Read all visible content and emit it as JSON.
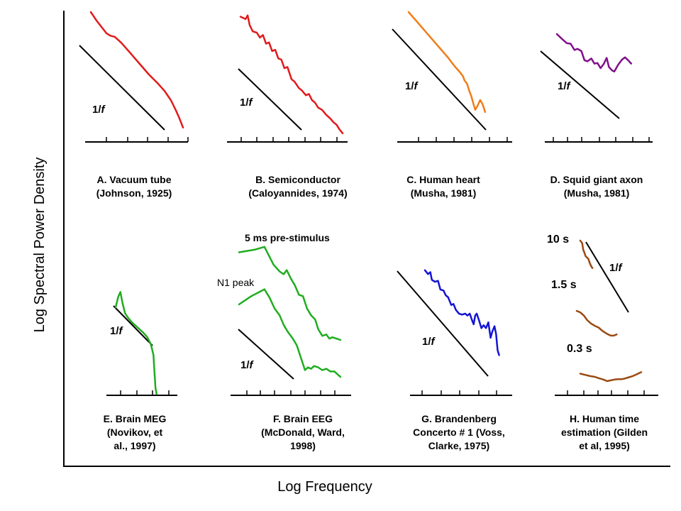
{
  "chart_data": {
    "type": "line",
    "title": "",
    "xlabel": "Log Frequency",
    "ylabel": "Log Spectral Power Density",
    "x_scale": "log",
    "y_scale": "log",
    "reference_label_prefix": "1/",
    "reference_label_var": "f",
    "panels": [
      {
        "id": "A",
        "caption": [
          "A. Vacuum tube",
          "(Johnson, 1925)"
        ],
        "color": "#e01b1b",
        "series": [
          {
            "values": [
              [
                0.0,
                1.0
              ],
              [
                0.06,
                0.93
              ],
              [
                0.12,
                0.87
              ],
              [
                0.17,
                0.82
              ],
              [
                0.21,
                0.8
              ],
              [
                0.26,
                0.79
              ],
              [
                0.33,
                0.74
              ],
              [
                0.42,
                0.66
              ],
              [
                0.53,
                0.56
              ],
              [
                0.63,
                0.47
              ],
              [
                0.72,
                0.4
              ],
              [
                0.8,
                0.33
              ],
              [
                0.87,
                0.25
              ],
              [
                0.92,
                0.17
              ],
              [
                0.96,
                0.1
              ],
              [
                1.0,
                0.02
              ]
            ]
          }
        ]
      },
      {
        "id": "B",
        "caption": [
          "B. Semiconductor",
          "(Caloyannides, 1974)"
        ],
        "color": "#e01b1b",
        "series": [
          {
            "values": [
              [
                0.0,
                0.98
              ],
              [
                0.05,
                0.96
              ],
              [
                0.07,
                0.99
              ],
              [
                0.09,
                0.91
              ],
              [
                0.12,
                0.86
              ],
              [
                0.16,
                0.85
              ],
              [
                0.19,
                0.81
              ],
              [
                0.22,
                0.83
              ],
              [
                0.25,
                0.76
              ],
              [
                0.28,
                0.77
              ],
              [
                0.31,
                0.7
              ],
              [
                0.34,
                0.71
              ],
              [
                0.37,
                0.64
              ],
              [
                0.4,
                0.63
              ],
              [
                0.43,
                0.56
              ],
              [
                0.46,
                0.57
              ],
              [
                0.5,
                0.47
              ],
              [
                0.53,
                0.45
              ],
              [
                0.57,
                0.4
              ],
              [
                0.6,
                0.38
              ],
              [
                0.64,
                0.34
              ],
              [
                0.67,
                0.35
              ],
              [
                0.7,
                0.3
              ],
              [
                0.73,
                0.28
              ],
              [
                0.76,
                0.24
              ],
              [
                0.8,
                0.22
              ],
              [
                0.84,
                0.18
              ],
              [
                0.88,
                0.15
              ],
              [
                0.91,
                0.12
              ],
              [
                0.94,
                0.1
              ],
              [
                0.97,
                0.06
              ],
              [
                1.0,
                0.03
              ]
            ]
          }
        ]
      },
      {
        "id": "C",
        "caption": [
          "C. Human heart",
          "(Musha, 1981)"
        ],
        "color": "#f07d17",
        "series": [
          {
            "values": [
              [
                0.0,
                1.0
              ],
              [
                0.08,
                0.93
              ],
              [
                0.16,
                0.86
              ],
              [
                0.24,
                0.79
              ],
              [
                0.32,
                0.72
              ],
              [
                0.4,
                0.65
              ],
              [
                0.48,
                0.58
              ],
              [
                0.56,
                0.5
              ],
              [
                0.62,
                0.45
              ],
              [
                0.66,
                0.41
              ],
              [
                0.68,
                0.37
              ],
              [
                0.71,
                0.34
              ],
              [
                0.74,
                0.27
              ],
              [
                0.76,
                0.23
              ],
              [
                0.79,
                0.15
              ],
              [
                0.81,
                0.1
              ],
              [
                0.84,
                0.14
              ],
              [
                0.87,
                0.19
              ],
              [
                0.9,
                0.15
              ],
              [
                0.93,
                0.08
              ]
            ]
          }
        ]
      },
      {
        "id": "D",
        "caption": [
          "D. Squid giant axon",
          "(Musha, 1981)"
        ],
        "color": "#800f8a",
        "series": [
          {
            "values": [
              [
                0.0,
                1.0
              ],
              [
                0.07,
                0.91
              ],
              [
                0.13,
                0.84
              ],
              [
                0.18,
                0.83
              ],
              [
                0.23,
                0.72
              ],
              [
                0.27,
                0.74
              ],
              [
                0.32,
                0.7
              ],
              [
                0.36,
                0.54
              ],
              [
                0.4,
                0.52
              ],
              [
                0.45,
                0.57
              ],
              [
                0.49,
                0.48
              ],
              [
                0.53,
                0.49
              ],
              [
                0.57,
                0.4
              ],
              [
                0.61,
                0.47
              ],
              [
                0.65,
                0.58
              ],
              [
                0.68,
                0.42
              ],
              [
                0.72,
                0.36
              ],
              [
                0.75,
                0.34
              ],
              [
                0.8,
                0.46
              ],
              [
                0.85,
                0.55
              ],
              [
                0.89,
                0.59
              ],
              [
                0.93,
                0.54
              ],
              [
                0.97,
                0.48
              ]
            ]
          }
        ]
      },
      {
        "id": "E",
        "caption": [
          "E. Brain MEG",
          "(Novikov, et",
          "al., 1997)"
        ],
        "color": "#1fad1f",
        "series": [
          {
            "values": [
              [
                0.0,
                0.73
              ],
              [
                0.05,
                0.82
              ],
              [
                0.09,
                0.86
              ],
              [
                0.13,
                0.77
              ],
              [
                0.18,
                0.68
              ],
              [
                0.24,
                0.64
              ],
              [
                0.32,
                0.6
              ],
              [
                0.42,
                0.56
              ],
              [
                0.52,
                0.52
              ],
              [
                0.6,
                0.48
              ],
              [
                0.67,
                0.42
              ],
              [
                0.72,
                0.33
              ],
              [
                0.74,
                0.18
              ],
              [
                0.76,
                0.05
              ],
              [
                0.78,
                0.0
              ]
            ]
          }
        ]
      },
      {
        "id": "F",
        "caption": [
          "F. Brain EEG",
          "(McDonald, Ward,",
          "1998)"
        ],
        "color": "#1fad1f",
        "series_labels": [
          "5 ms pre-stimulus",
          "N1 peak"
        ],
        "series": [
          {
            "values": [
              [
                0.0,
                0.93
              ],
              [
                0.16,
                0.95
              ],
              [
                0.25,
                0.97
              ],
              [
                0.34,
                0.84
              ],
              [
                0.4,
                0.79
              ],
              [
                0.44,
                0.77
              ],
              [
                0.47,
                0.8
              ],
              [
                0.51,
                0.74
              ],
              [
                0.55,
                0.69
              ],
              [
                0.59,
                0.62
              ],
              [
                0.63,
                0.61
              ],
              [
                0.67,
                0.52
              ],
              [
                0.71,
                0.47
              ],
              [
                0.75,
                0.44
              ],
              [
                0.78,
                0.37
              ],
              [
                0.82,
                0.32
              ],
              [
                0.86,
                0.33
              ],
              [
                0.89,
                0.3
              ],
              [
                0.92,
                0.31
              ],
              [
                0.96,
                0.3
              ],
              [
                1.0,
                0.29
              ]
            ]
          },
          {
            "values": [
              [
                0.0,
                0.55
              ],
              [
                0.12,
                0.61
              ],
              [
                0.25,
                0.66
              ],
              [
                0.3,
                0.6
              ],
              [
                0.35,
                0.52
              ],
              [
                0.4,
                0.47
              ],
              [
                0.44,
                0.4
              ],
              [
                0.48,
                0.35
              ],
              [
                0.53,
                0.3
              ],
              [
                0.57,
                0.25
              ],
              [
                0.61,
                0.16
              ],
              [
                0.65,
                0.07
              ],
              [
                0.68,
                0.09
              ],
              [
                0.71,
                0.08
              ],
              [
                0.74,
                0.1
              ],
              [
                0.78,
                0.09
              ],
              [
                0.82,
                0.07
              ],
              [
                0.86,
                0.08
              ],
              [
                0.9,
                0.06
              ],
              [
                0.94,
                0.06
              ],
              [
                0.97,
                0.04
              ],
              [
                1.0,
                0.02
              ]
            ]
          }
        ]
      },
      {
        "id": "G",
        "caption": [
          "G. Brandenberg",
          "Concerto # 1 (Voss,",
          "Clarke, 1975)"
        ],
        "color": "#1414d6",
        "series": [
          {
            "values": [
              [
                0.0,
                0.98
              ],
              [
                0.04,
                0.94
              ],
              [
                0.07,
                0.96
              ],
              [
                0.09,
                0.88
              ],
              [
                0.13,
                0.86
              ],
              [
                0.17,
                0.87
              ],
              [
                0.2,
                0.78
              ],
              [
                0.24,
                0.77
              ],
              [
                0.27,
                0.72
              ],
              [
                0.3,
                0.7
              ],
              [
                0.34,
                0.62
              ],
              [
                0.37,
                0.63
              ],
              [
                0.4,
                0.57
              ],
              [
                0.44,
                0.53
              ],
              [
                0.48,
                0.52
              ],
              [
                0.52,
                0.53
              ],
              [
                0.55,
                0.51
              ],
              [
                0.58,
                0.53
              ],
              [
                0.61,
                0.46
              ],
              [
                0.63,
                0.42
              ],
              [
                0.65,
                0.51
              ],
              [
                0.67,
                0.53
              ],
              [
                0.7,
                0.46
              ],
              [
                0.73,
                0.38
              ],
              [
                0.76,
                0.41
              ],
              [
                0.79,
                0.38
              ],
              [
                0.82,
                0.44
              ],
              [
                0.85,
                0.28
              ],
              [
                0.87,
                0.34
              ],
              [
                0.9,
                0.4
              ],
              [
                0.92,
                0.32
              ],
              [
                0.94,
                0.15
              ],
              [
                0.96,
                0.1
              ]
            ]
          }
        ]
      },
      {
        "id": "H",
        "caption": [
          "H. Human time",
          "estimation (Gilden",
          "et al, 1995)"
        ],
        "color": "#9a4a12",
        "series_labels": [
          "10 s",
          "1.5 s",
          "0.3 s"
        ],
        "series": [
          {
            "values": [
              [
                0.0,
                1.0
              ],
              [
                0.07,
                0.96
              ],
              [
                0.11,
                0.86
              ],
              [
                0.15,
                0.82
              ],
              [
                0.2,
                0.76
              ],
              [
                0.25,
                0.74
              ],
              [
                0.3,
                0.72
              ],
              [
                0.35,
                0.66
              ],
              [
                0.4,
                0.61
              ],
              [
                0.45,
                0.58
              ]
            ]
          },
          {
            "values": [
              [
                0.0,
                0.58
              ],
              [
                0.08,
                0.55
              ],
              [
                0.16,
                0.49
              ],
              [
                0.22,
                0.42
              ],
              [
                0.3,
                0.36
              ],
              [
                0.38,
                0.32
              ],
              [
                0.46,
                0.29
              ],
              [
                0.53,
                0.24
              ],
              [
                0.6,
                0.2
              ],
              [
                0.66,
                0.17
              ],
              [
                0.72,
                0.15
              ],
              [
                0.78,
                0.15
              ],
              [
                0.84,
                0.17
              ]
            ]
          },
          {
            "values": [
              [
                0.0,
                0.19
              ],
              [
                0.08,
                0.16
              ],
              [
                0.16,
                0.13
              ],
              [
                0.24,
                0.11
              ],
              [
                0.31,
                0.07
              ],
              [
                0.38,
                0.04
              ],
              [
                0.44,
                0.0
              ],
              [
                0.5,
                0.02
              ],
              [
                0.56,
                0.04
              ],
              [
                0.62,
                0.05
              ],
              [
                0.68,
                0.05
              ],
              [
                0.74,
                0.07
              ],
              [
                0.8,
                0.1
              ],
              [
                0.86,
                0.13
              ],
              [
                0.92,
                0.17
              ],
              [
                0.97,
                0.21
              ],
              [
                1.0,
                0.23
              ]
            ]
          }
        ]
      }
    ]
  }
}
